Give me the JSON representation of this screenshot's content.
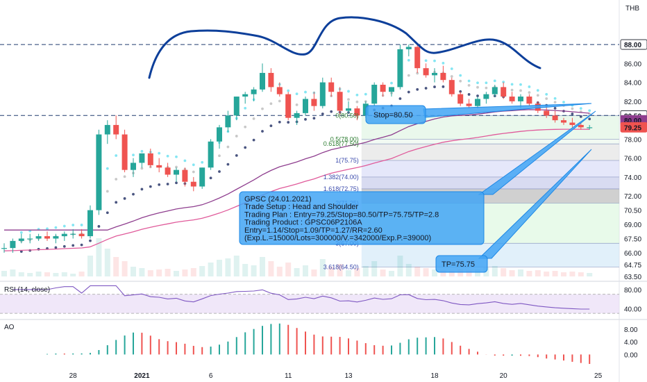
{
  "currency": "THB",
  "rsi_title": "RSI (14, close)",
  "ao_title": "AO",
  "colors": {
    "up": "#26a69a",
    "down": "#ef5350",
    "callout": "#42a5f5",
    "hs": "#0d3f9a",
    "ema_fast": "#84e6f3",
    "ema_mid": "#c8c8c8",
    "ema_slow": "#4a5580",
    "ma_purple": "#8e3d8e",
    "ma_pink": "#e05a9a"
  },
  "price_axis": {
    "min": 63.5,
    "max": 90.5,
    "ticks": [
      "86.00",
      "84.00",
      "82.00",
      "80.00",
      "78.00",
      "76.00",
      "74.00",
      "72.00",
      "70.50",
      "69.00",
      "67.50",
      "66.00",
      "64.75",
      "63.50"
    ],
    "tick_values": [
      86,
      84,
      82,
      80,
      78,
      76,
      74,
      72,
      70.5,
      69,
      67.5,
      66,
      64.75,
      63.5
    ],
    "badges": [
      {
        "label": "88.00",
        "value": 88.0,
        "color": "#131722",
        "bg": "#ffffff"
      },
      {
        "label": "80.50",
        "value": 80.5,
        "color": "#131722",
        "bg": "#ffffff"
      },
      {
        "label": "80.00",
        "value": 80.0,
        "color": "#ffffff",
        "bg": "#8e3d8e"
      },
      {
        "label": "79.25",
        "value": 79.25,
        "color": "#ffffff",
        "bg": "#ef5350"
      }
    ]
  },
  "rsi_axis": {
    "ticks": [
      "80.00",
      "40.00"
    ],
    "values": [
      80,
      40
    ],
    "range": [
      20,
      90
    ]
  },
  "ao_axis": {
    "ticks": [
      "8.00",
      "4.00",
      "0.00"
    ],
    "values": [
      8,
      4,
      0
    ],
    "range": [
      -3,
      10
    ]
  },
  "x_axis": {
    "labels": [
      "28",
      "2021",
      "6",
      "11",
      "13",
      "18",
      "20",
      "25"
    ],
    "bar_index": [
      8,
      16,
      24,
      33,
      40,
      50,
      58,
      69
    ]
  },
  "fib_levels": [
    {
      "label": "0(80.50)",
      "value": 80.5
    },
    {
      "label": "0.5(78.00)",
      "value": 78.0
    },
    {
      "label": "0.618(77.50)",
      "value": 77.5
    },
    {
      "label": "1(75.75)",
      "value": 75.75
    },
    {
      "label": "1.382(74.00)",
      "value": 74.0
    },
    {
      "label": "1.618(72.75)",
      "value": 72.75
    },
    {
      "label": "2(71.25)",
      "value": 71.25
    },
    {
      "label": "3(67.00)",
      "value": 67.0
    },
    {
      "label": "3.618(64.50)",
      "value": 64.5
    }
  ],
  "annotations": {
    "stop": "Stop=80.50",
    "tp": "TP=75.75",
    "plan_lines": [
      "GPSC (24.01.2021)",
      "Trade Setup : Head and Shoulder",
      "Trading Plan : Entry=79.25/Stop=80.50/TP=75.75/TP=2.8",
      "Trading Product : GPSC06P2106A",
      "Entry=1.14/Stop=1.09/TP=1.27/RR=2.60",
      "(Exp.L.=15000/Lots=300000/V.=342000/Exp.P.=39000)"
    ]
  },
  "chart_data": {
    "type": "candlestick",
    "ohlc": [
      [
        66.5,
        67.0,
        66.0,
        66.5
      ],
      [
        66.5,
        67.5,
        66.0,
        67.25
      ],
      [
        67.25,
        68.0,
        67.0,
        67.5
      ],
      [
        67.5,
        68.0,
        67.0,
        67.5
      ],
      [
        67.5,
        68.0,
        67.25,
        67.75
      ],
      [
        67.75,
        68.25,
        67.25,
        67.5
      ],
      [
        67.5,
        68.0,
        67.0,
        67.75
      ],
      [
        67.75,
        68.25,
        67.25,
        68.0
      ],
      [
        68.0,
        68.5,
        67.5,
        68.0
      ],
      [
        68.0,
        68.5,
        67.5,
        67.75
      ],
      [
        67.75,
        71.0,
        67.5,
        70.5
      ],
      [
        70.5,
        79.0,
        70.0,
        78.5
      ],
      [
        78.5,
        80.0,
        77.5,
        79.5
      ],
      [
        79.5,
        80.5,
        78.0,
        78.5
      ],
      [
        78.5,
        79.0,
        74.5,
        74.75
      ],
      [
        74.75,
        76.0,
        74.0,
        75.5
      ],
      [
        75.5,
        76.5,
        75.0,
        76.5
      ],
      [
        76.5,
        77.0,
        75.0,
        75.25
      ],
      [
        75.25,
        76.0,
        74.5,
        75.0
      ],
      [
        75.0,
        75.5,
        74.0,
        74.25
      ],
      [
        74.25,
        75.0,
        73.5,
        74.75
      ],
      [
        74.75,
        75.0,
        73.0,
        73.5
      ],
      [
        73.5,
        74.0,
        72.5,
        73.0
      ],
      [
        73.0,
        75.0,
        72.75,
        75.0
      ],
      [
        75.0,
        78.0,
        74.75,
        77.75
      ],
      [
        77.75,
        79.5,
        77.0,
        79.25
      ],
      [
        79.25,
        81.0,
        78.75,
        80.5
      ],
      [
        80.5,
        82.5,
        80.0,
        82.5
      ],
      [
        82.5,
        83.0,
        81.75,
        82.75
      ],
      [
        82.75,
        83.5,
        82.0,
        83.25
      ],
      [
        83.25,
        86.0,
        83.0,
        85.0
      ],
      [
        85.0,
        85.5,
        83.0,
        83.5
      ],
      [
        83.5,
        84.0,
        82.5,
        82.75
      ],
      [
        82.75,
        83.0,
        80.0,
        80.25
      ],
      [
        80.25,
        81.0,
        79.5,
        80.75
      ],
      [
        80.75,
        82.5,
        80.5,
        82.25
      ],
      [
        82.25,
        83.0,
        81.0,
        81.5
      ],
      [
        81.5,
        84.5,
        81.25,
        84.0
      ],
      [
        84.0,
        84.5,
        82.5,
        83.0
      ],
      [
        83.0,
        83.5,
        80.5,
        81.0
      ],
      [
        81.0,
        82.0,
        80.75,
        81.25
      ],
      [
        81.25,
        81.5,
        80.0,
        80.5
      ],
      [
        80.5,
        82.0,
        80.25,
        81.75
      ],
      [
        81.75,
        84.0,
        81.5,
        83.75
      ],
      [
        83.75,
        84.0,
        82.5,
        83.0
      ],
      [
        83.0,
        83.5,
        82.5,
        83.5
      ],
      [
        83.5,
        88.0,
        83.25,
        87.5
      ],
      [
        87.5,
        88.0,
        86.75,
        87.75
      ],
      [
        87.75,
        88.0,
        85.0,
        85.5
      ],
      [
        85.5,
        86.0,
        84.5,
        84.75
      ],
      [
        84.75,
        85.5,
        84.0,
        85.0
      ],
      [
        85.0,
        85.75,
        84.0,
        84.25
      ],
      [
        84.25,
        84.5,
        82.5,
        82.75
      ],
      [
        82.75,
        83.0,
        81.5,
        81.75
      ],
      [
        81.75,
        82.25,
        81.25,
        81.5
      ],
      [
        81.5,
        82.5,
        81.25,
        82.25
      ],
      [
        82.25,
        83.0,
        81.75,
        82.75
      ],
      [
        82.75,
        83.75,
        82.5,
        83.5
      ],
      [
        83.5,
        84.0,
        82.25,
        82.5
      ],
      [
        82.5,
        83.0,
        81.75,
        82.0
      ],
      [
        82.0,
        82.75,
        81.25,
        82.5
      ],
      [
        82.5,
        82.75,
        81.5,
        81.75
      ],
      [
        81.75,
        82.0,
        80.75,
        81.0
      ],
      [
        81.0,
        81.5,
        80.25,
        80.5
      ],
      [
        80.5,
        81.0,
        79.75,
        80.0
      ],
      [
        80.0,
        80.25,
        79.5,
        79.75
      ],
      [
        79.75,
        80.25,
        79.25,
        79.5
      ],
      [
        79.5,
        79.75,
        79.0,
        79.25
      ],
      [
        79.25,
        79.5,
        79.0,
        79.25
      ]
    ],
    "price_lines": [
      88.0,
      80.5
    ],
    "current_price": 79.25
  }
}
